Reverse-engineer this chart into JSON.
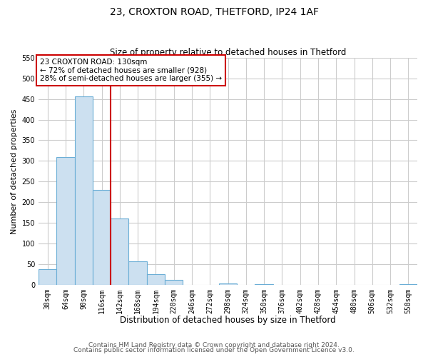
{
  "title": "23, CROXTON ROAD, THETFORD, IP24 1AF",
  "subtitle": "Size of property relative to detached houses in Thetford",
  "xlabel": "Distribution of detached houses by size in Thetford",
  "ylabel": "Number of detached properties",
  "bar_color": "#cce0f0",
  "bar_edge_color": "#6baed6",
  "bin_labels": [
    "38sqm",
    "64sqm",
    "90sqm",
    "116sqm",
    "142sqm",
    "168sqm",
    "194sqm",
    "220sqm",
    "246sqm",
    "272sqm",
    "298sqm",
    "324sqm",
    "350sqm",
    "376sqm",
    "402sqm",
    "428sqm",
    "454sqm",
    "480sqm",
    "506sqm",
    "532sqm",
    "558sqm"
  ],
  "bar_heights": [
    38,
    310,
    457,
    230,
    160,
    57,
    26,
    12,
    0,
    0,
    3,
    0,
    2,
    0,
    0,
    0,
    0,
    0,
    0,
    0,
    2
  ],
  "n_bins": 21,
  "property_line_bin": 3,
  "property_line_color": "#cc0000",
  "ylim_max": 550,
  "ytick_step": 50,
  "annotation_title": "23 CROXTON ROAD: 130sqm",
  "annotation_line1": "← 72% of detached houses are smaller (928)",
  "annotation_line2": "28% of semi-detached houses are larger (355) →",
  "annotation_box_color": "#ffffff",
  "annotation_box_edge": "#cc0000",
  "footer_line1": "Contains HM Land Registry data © Crown copyright and database right 2024.",
  "footer_line2": "Contains public sector information licensed under the Open Government Licence v3.0.",
  "background_color": "#ffffff",
  "grid_color": "#cccccc",
  "title_fontsize": 10,
  "subtitle_fontsize": 8.5,
  "ylabel_fontsize": 8,
  "xlabel_fontsize": 8.5,
  "tick_fontsize": 7,
  "annot_fontsize": 7.5,
  "footer_fontsize": 6.5
}
